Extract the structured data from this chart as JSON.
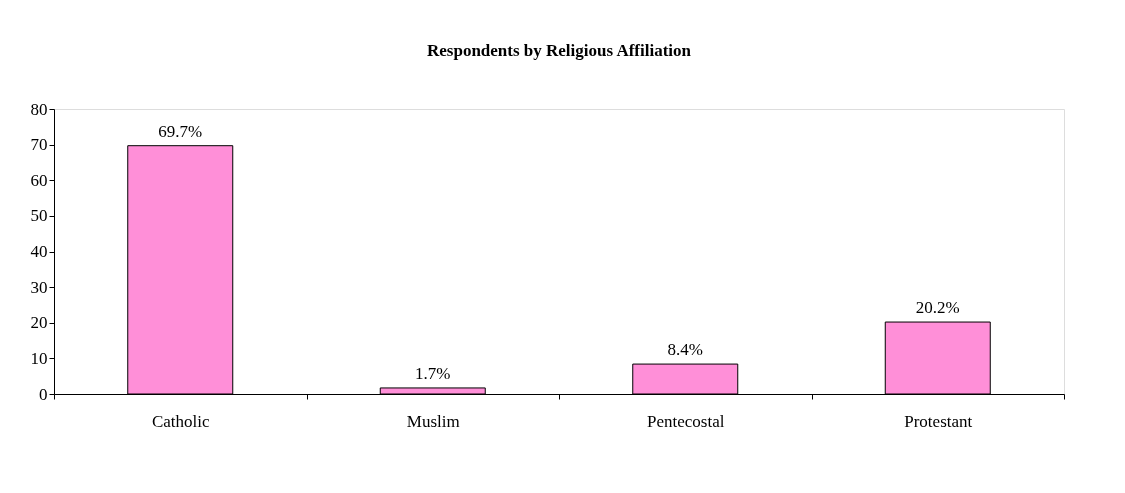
{
  "chart_data": {
    "type": "bar",
    "title": "Respondents by Religious Affiliation",
    "categories": [
      "Catholic",
      "Muslim",
      "Pentecostal",
      "Protestant"
    ],
    "values": [
      69.7,
      1.7,
      8.4,
      20.2
    ],
    "value_labels": [
      "69.7%",
      "1.7%",
      "8.4%",
      "20.2%"
    ],
    "color": "#ff8fd8",
    "ylim": [
      0,
      80
    ],
    "yticks": [
      0,
      10,
      20,
      30,
      40,
      50,
      60,
      70,
      80
    ],
    "grid": false
  }
}
